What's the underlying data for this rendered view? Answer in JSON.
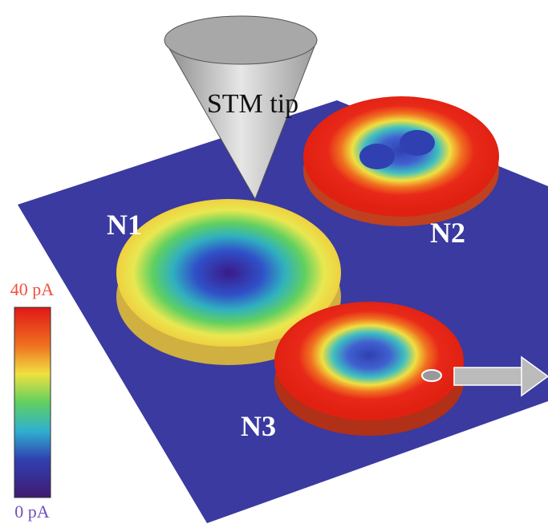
{
  "tip_label": "STM tip",
  "islands": [
    {
      "label": "N1"
    },
    {
      "label": "N2"
    },
    {
      "label": "N3"
    }
  ],
  "colorbar": {
    "max_label": "40 pA",
    "min_label": "0 pA"
  }
}
